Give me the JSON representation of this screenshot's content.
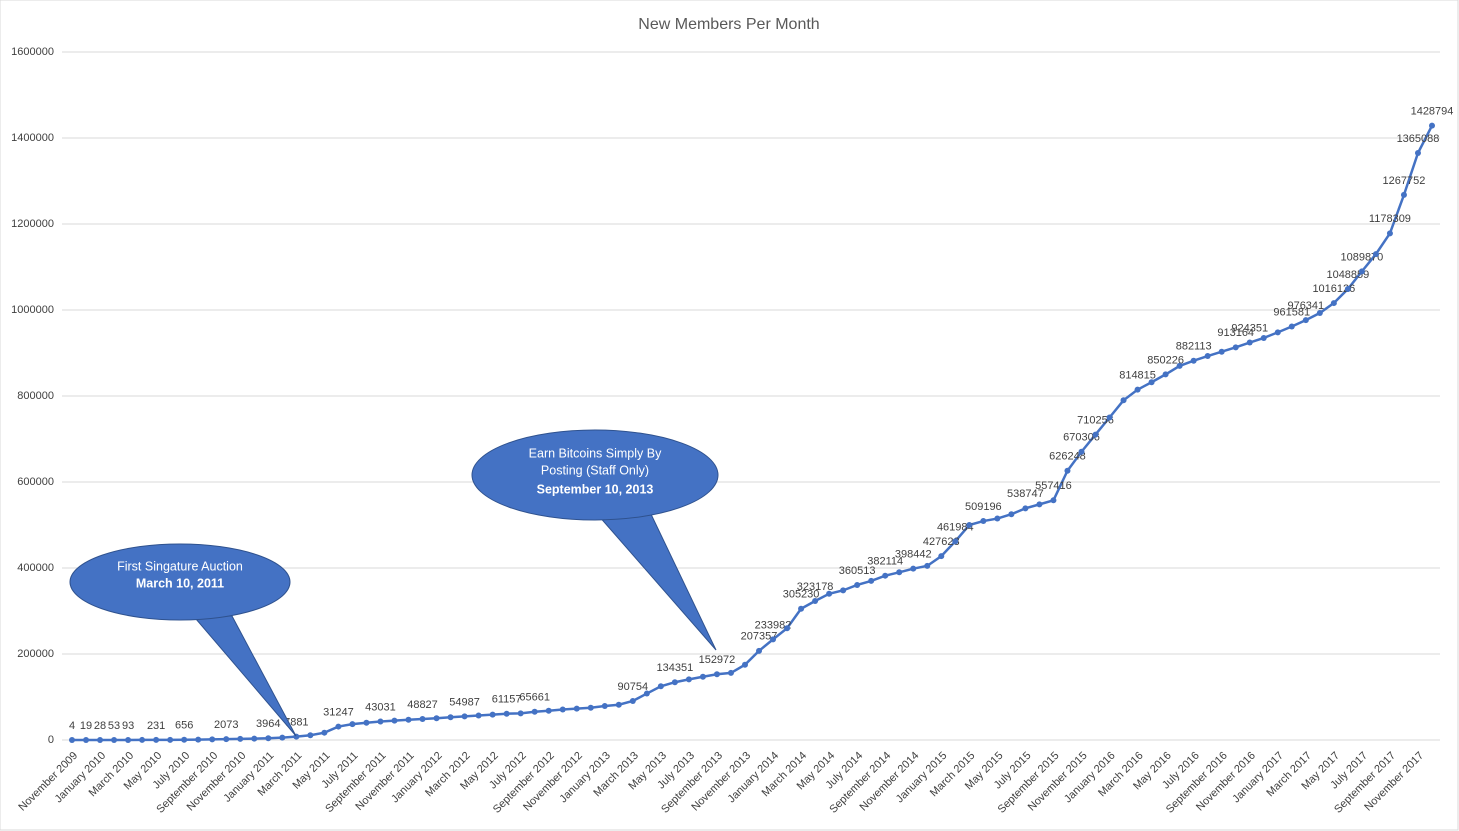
{
  "chart_data": {
    "type": "line",
    "title": "New Members Per Month",
    "categories": [
      "November 2009",
      null,
      "January 2010",
      null,
      "March 2010",
      null,
      "May 2010",
      null,
      "July 2010",
      null,
      "September 2010",
      null,
      "November 2010",
      null,
      "January 2011",
      null,
      "March 2011",
      null,
      "May 2011",
      null,
      "July 2011",
      null,
      "September 2011",
      null,
      "November 2011",
      null,
      "January 2012",
      null,
      "March 2012",
      null,
      "May 2012",
      null,
      "July 2012",
      null,
      "September 2012",
      null,
      "November 2012",
      null,
      "January 2013",
      null,
      "March 2013",
      null,
      "May 2013",
      null,
      "July 2013",
      null,
      "September 2013",
      null,
      "November 2013",
      null,
      "January 2014",
      null,
      "March 2014",
      null,
      "May 2014",
      null,
      "July 2014",
      null,
      "September 2014",
      null,
      "November 2014",
      null,
      "January 2015",
      null,
      "March 2015",
      null,
      "May 2015",
      null,
      "July 2015",
      null,
      "September 2015",
      null,
      "November 2015",
      null,
      "January 2016",
      null,
      "March 2016",
      null,
      "May 2016",
      null,
      "July 2016",
      null,
      "September 2016",
      null,
      "November 2016",
      null,
      "January 2017",
      null,
      "March 2017",
      null,
      "May 2017",
      null,
      "July 2017",
      null,
      "September 2017",
      null,
      "November 2017",
      null
    ],
    "series": [
      {
        "name": "New Members",
        "color": "#4472c4",
        "values": [
          4,
          19,
          28,
          53,
          93,
          150,
          231,
          400,
          656,
          1000,
          1500,
          2073,
          2600,
          3200,
          3964,
          5500,
          7881,
          11000,
          17000,
          31247,
          37000,
          40000,
          43031,
          45000,
          47000,
          48827,
          50500,
          53000,
          54987,
          57000,
          59000,
          61157,
          62000,
          65661,
          68000,
          71000,
          73000,
          75000,
          79000,
          82000,
          90754,
          108000,
          125000,
          134351,
          141000,
          147000,
          152972,
          156000,
          175000,
          207357,
          233982,
          260000,
          305230,
          323178,
          340000,
          348000,
          360513,
          370000,
          382114,
          390000,
          398442,
          405000,
          427623,
          461984,
          500000,
          509196,
          515000,
          525000,
          538747,
          548000,
          557416,
          626248,
          670306,
          710256,
          750000,
          790000,
          814815,
          832000,
          850226,
          870000,
          882113,
          893000,
          903000,
          913164,
          924351,
          935000,
          948000,
          961581,
          976341,
          993000,
          1016126,
          1048859,
          1089870,
          1130000,
          1178309,
          1267752,
          1365088,
          1428794
        ],
        "value_labels": [
          "4",
          "19",
          "28",
          "53",
          "93",
          null,
          "231",
          null,
          "656",
          null,
          null,
          "2073",
          null,
          null,
          "3964",
          null,
          "7881",
          null,
          null,
          "31247",
          null,
          null,
          "43031",
          null,
          null,
          "48827",
          null,
          null,
          "54987",
          null,
          null,
          "61157",
          null,
          "65661",
          null,
          null,
          null,
          null,
          null,
          null,
          "90754",
          null,
          null,
          "134351",
          null,
          null,
          "152972",
          null,
          null,
          "207357",
          "233982",
          null,
          "305230",
          "323178",
          null,
          null,
          "360513",
          null,
          "382114",
          null,
          "398442",
          null,
          "427623",
          "461984",
          null,
          "509196",
          null,
          null,
          "538747",
          null,
          "557416",
          "626248",
          "670306",
          "710256",
          null,
          null,
          "814815",
          null,
          "850226",
          null,
          "882113",
          null,
          null,
          "913164",
          "924351",
          null,
          null,
          "961581",
          "976341",
          null,
          "1016126",
          "1048859",
          "1089870",
          null,
          "1178309",
          "1267752",
          "1365088",
          "1428794"
        ]
      }
    ],
    "ylim": [
      0,
      1600000
    ],
    "yticks": [
      0,
      200000,
      400000,
      600000,
      800000,
      1000000,
      1200000,
      1400000,
      1600000
    ],
    "grid": true,
    "annotations": [
      {
        "lines": [
          "First Singature Auction",
          "March 10, 2011"
        ]
      },
      {
        "lines": [
          "Earn Bitcoins Simply By",
          "Posting  (Staff Only)",
          "September 10, 2013"
        ]
      }
    ]
  }
}
